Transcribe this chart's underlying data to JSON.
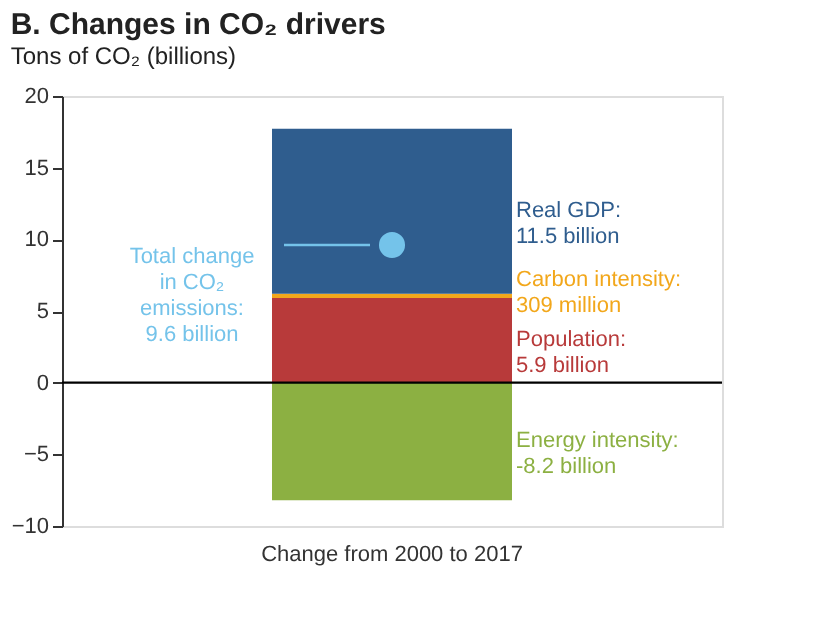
{
  "chart_data": {
    "type": "bar",
    "title": "B. Changes in CO₂ drivers",
    "ylabel": "Tons of CO₂ (billions)",
    "categories": [
      "Change from 2000 to 2017"
    ],
    "stacked": true,
    "series": [
      {
        "color": "#b83a3a",
        "values": [
          5.9
        ]
      },
      {
        "color": "#f2a71b",
        "values": [
          0.31
        ]
      },
      {
        "color": "#2f5d8e",
        "values": [
          11.5
        ]
      },
      {
        "color": "#8cb042",
        "values": [
          -8.2
        ]
      },
      {
        "type": "scatter",
        "color": "#74c3ea",
        "values": [
          9.6
        ]
      }
    ],
    "annotations": [
      "Population: 5.9 billion",
      "Carbon intensity: 309 million",
      "Real GDP: 11.5 billion",
      "Energy intensity: -8.2 billion",
      "Total change in CO₂ emissions: 9.6 billion"
    ],
    "ylim": [
      -10,
      20
    ],
    "yticks": [
      -10,
      -5,
      0,
      5,
      10,
      15,
      20
    ],
    "ref_lines": [
      {
        "axis": "y",
        "value": 0,
        "color": "#000000"
      }
    ],
    "grid": false
  }
}
